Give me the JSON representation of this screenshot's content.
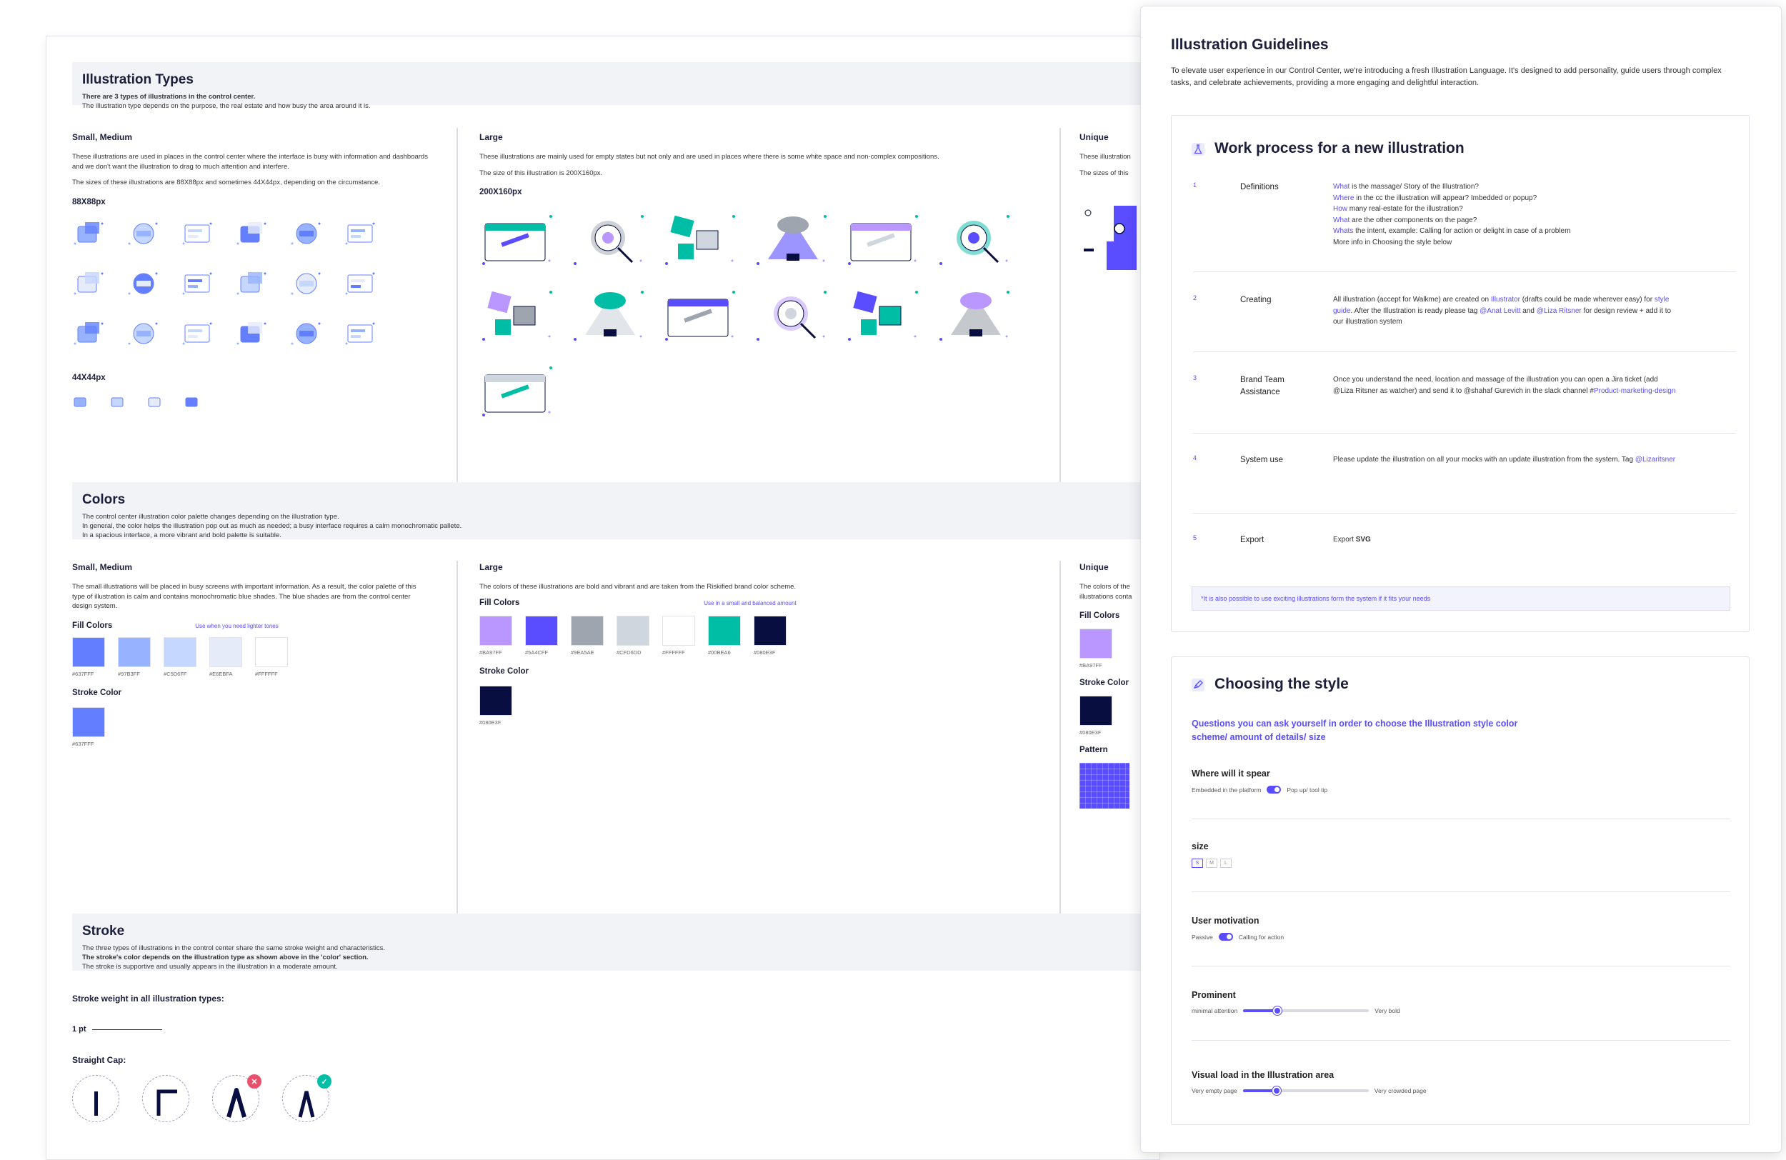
{
  "board": {
    "types": {
      "title": "Illustration Types",
      "line1": "There are 3 types of illustrations in the control center.",
      "line2": "The illustration type depends on the purpose, the real estate and how busy the area around it is."
    },
    "small": {
      "title": "Small, Medium",
      "desc": "These illustrations are used in places in the control center where the interface is busy with information and dashboards and we don't want the illustration to drag to much attention and interfere.",
      "sizes": "The sizes of these illustrations are 88X88px and sometimes 44X44px, depending on the circumstance.",
      "size_a": "88X88px",
      "size_b": "44X44px",
      "icons": [
        "cubes",
        "chat-window",
        "megaphone",
        "new-seal",
        "helmet",
        "calendar",
        "mailbox",
        "card-stack",
        "fish-store",
        "document",
        "wallet",
        "robot",
        "network",
        "chart-people",
        "ticket",
        "magnifier",
        "layout",
        "gear"
      ],
      "small_icons": [
        "cubes-small",
        "chat-small",
        "card-small",
        "megaphone-small"
      ]
    },
    "large": {
      "title": "Large",
      "desc": "These illustrations are mainly used for empty states but not only and are used in places where there is some white space and non-complex compositions.",
      "size_note": "The size of this illustration is 200X160px.",
      "size": "200X160px",
      "items": [
        "window-pencil",
        "cube-pile",
        "telescope",
        "lamp",
        "magnifier-cubes",
        "mailbox-large",
        "server-list",
        "watering-can",
        "puzzle-search",
        "compass-search",
        "video-call",
        "dashboard",
        "people-network"
      ]
    },
    "unique": {
      "title": "Unique",
      "desc": "These illustration",
      "sizes": "The sizes of this"
    },
    "colors": {
      "title": "Colors",
      "line1": "The control center illustration color palette changes depending on the illustration type.",
      "line2": "In general, the color helps the illustration pop out as much as needed; a busy interface requires a calm monochromatic pallete.",
      "line3": "In a spacious interface, a more vibrant and bold palette is suitable.",
      "small": {
        "title": "Small, Medium",
        "desc": "The small illustrations will be placed in busy screens with important information. As a result, the color palette of this type of illustration is calm and contains monochromatic blue shades. The blue shades are from the control center design system.",
        "fill_label": "Fill Colors",
        "note": "Use when you need lighter tones",
        "fills": [
          {
            "hex": "#637FFF",
            "label": "#637FFF"
          },
          {
            "hex": "#97B3FF",
            "label": "#97B3FF"
          },
          {
            "hex": "#C5D6FF",
            "label": "#C5D6FF"
          },
          {
            "hex": "#E6EBFA",
            "label": "#E6EBFA"
          },
          {
            "hex": "#FFFFFF",
            "label": "#FFFFFF"
          }
        ],
        "stroke_label": "Stroke Color",
        "stroke": {
          "hex": "#637FFF",
          "label": "#637FFF"
        }
      },
      "large": {
        "title": "Large",
        "desc": "The colors of these illustrations are bold and vibrant and are taken from the Riskified brand color scheme.",
        "fill_label": "Fill Colors",
        "note": "Use in a small and balanced amount",
        "fills": [
          {
            "hex": "#BA97FF",
            "label": "#BA97FF"
          },
          {
            "hex": "#5A4CFF",
            "label": "#5A4CFF"
          },
          {
            "hex": "#9EA5AE",
            "label": "#9EA5AE"
          },
          {
            "hex": "#CFD6DD",
            "label": "#CFD6DD"
          },
          {
            "hex": "#FFFFFF",
            "label": "#FFFFFF"
          },
          {
            "hex": "#00BEA6",
            "label": "#00BEA6"
          },
          {
            "hex": "#080E3F",
            "label": "#080E3F"
          }
        ],
        "stroke_label": "Stroke Color",
        "stroke": {
          "hex": "#080E3F",
          "label": "#080E3F"
        }
      },
      "unique": {
        "title": "Unique",
        "desc1": "The colors of the",
        "desc2": "illustrations conta",
        "fill_label": "Fill Colors",
        "fill": {
          "hex": "#BA97FF",
          "label": "#BA97FF"
        },
        "stroke_label": "Stroke Color",
        "stroke": {
          "hex": "#080E3F",
          "label": "#080E3F"
        },
        "pattern_label": "Pattern"
      }
    },
    "stroke": {
      "title": "Stroke",
      "line1": "The three types of illustrations in the control center share the same stroke weight and characteristics.",
      "line2": "The stroke's color depends on the illustration type as shown above in the 'color' section.",
      "line3": "The stroke is supportive and usually appears in the illustration in a moderate amount.",
      "weight_label": "Stroke weight in all illustration types:",
      "weight": "1 pt",
      "cap_label": "Straight Cap:",
      "wrong": "✕",
      "right": "✓"
    }
  },
  "panel": {
    "title": "Illustration Guidelines",
    "intro": "To elevate user experience in our Control Center, we're introducing a fresh Illustration Language. It's designed to add personality, guide users through complex tasks, and celebrate achievements, providing a more engaging and delightful interaction.",
    "work": {
      "title": "Work process for a new illustration",
      "steps": [
        {
          "num": "1",
          "label": "Definitions",
          "l1a": "What",
          "l1b": " is the massage/ Story of the Illustration?",
          "l2a": "Where",
          "l2b": " in the cc the illustration will appear? Imbedded or popup?",
          "l3a": "How",
          "l3b": " many real-estate for the illustration?",
          "l4a": "What",
          "l4b": " are the other components on the page?",
          "l5a": "Whats",
          "l5b": " the intent, example: Calling for action or delight in case of a problem",
          "l6": "More info in Choosing the style below"
        },
        {
          "num": "2",
          "label": "Creating",
          "t1": "All illustration (accept for Walkme) are created on ",
          "t1h": "Illustrator",
          "t1c": " (drafts could be made wherever easy) for ",
          "t1d": "style guide",
          "t1e": ". After the Illustration is ready please tag ",
          "t1f": "@Anat Levitt",
          "t1g": " and ",
          "t1i": "@Liza Ritsner",
          "t1j": " for design review + add it to our illustration system"
        },
        {
          "num": "3",
          "label": "Brand Team Assistance",
          "t1": "Once you understand the need, location and massage of the illustration you can open a Jira ticket (add @Liza Ritsner as watcher) and send it to @shahaf Gurevich in the slack channel #",
          "t1h": "Product-marketing-design"
        },
        {
          "num": "4",
          "label": "System use",
          "t1": "Please update the illustration on all your mocks with an update illustration from the system. Tag ",
          "t1h": "@Lizaritsner"
        },
        {
          "num": "5",
          "label": "Export",
          "t1": "Export ",
          "t1b": "SVG"
        }
      ],
      "footnote": "*It is also possible to use exciting illustrations form the system if it fits your needs"
    },
    "style": {
      "title": "Choosing the style",
      "question": "Questions you can ask yourself in order to choose the Illustration style color scheme/ amount of details/ size",
      "where": {
        "title": "Where will it spear",
        "left": "Embedded in the platform",
        "right": "Pop up/ tool tip"
      },
      "size": {
        "title": "size",
        "s": "S",
        "m": "M",
        "l": "L"
      },
      "motivation": {
        "title": "User motivation",
        "left": "Passive",
        "right": "Calling for action"
      },
      "prominent": {
        "title": "Prominent",
        "left": "minimal attention",
        "right": "Very bold",
        "value": 0.27
      },
      "load": {
        "title": "Visual load in the Illustration area",
        "left": "Very empty page",
        "right": "Very crowded page",
        "value": 0.27
      }
    }
  }
}
